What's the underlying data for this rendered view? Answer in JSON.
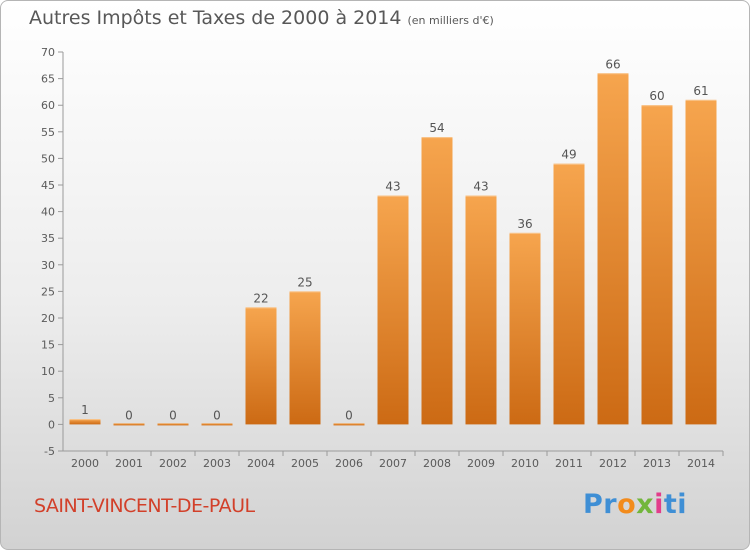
{
  "header": {
    "title": "Autres Impôts et Taxes de 2000 à 2014",
    "unit": "(en milliers d'€)"
  },
  "footer": {
    "commune": "SAINT-VINCENT-DE-PAUL",
    "brand": "Proxiti",
    "brand_parts": [
      "Pr",
      "o",
      "x",
      "i",
      "ti"
    ]
  },
  "colors": {
    "bar_light": "#f6a34c",
    "bar_dark": "#cc6a14",
    "commune_text": "#d2402a"
  },
  "chart_data": {
    "type": "bar",
    "title": "Autres Impôts et Taxes de 2000 à 2014",
    "subtitle": "(en milliers d'€)",
    "categories": [
      "2000",
      "2001",
      "2002",
      "2003",
      "2004",
      "2005",
      "2006",
      "2007",
      "2008",
      "2009",
      "2010",
      "2011",
      "2012",
      "2013",
      "2014"
    ],
    "values": [
      1,
      0,
      0,
      0,
      22,
      25,
      0,
      43,
      54,
      43,
      36,
      49,
      66,
      60,
      61
    ],
    "labels": [
      "1",
      "0",
      "0",
      "0",
      "22",
      "25",
      "0",
      "43",
      "54",
      "43",
      "36",
      "49",
      "66",
      "60",
      "61"
    ],
    "ylim": [
      -5,
      70
    ],
    "yticks": [
      -5,
      0,
      5,
      10,
      15,
      20,
      25,
      30,
      35,
      40,
      45,
      50,
      55,
      60,
      65,
      70
    ],
    "grid": false,
    "xlabel": "",
    "ylabel": ""
  }
}
